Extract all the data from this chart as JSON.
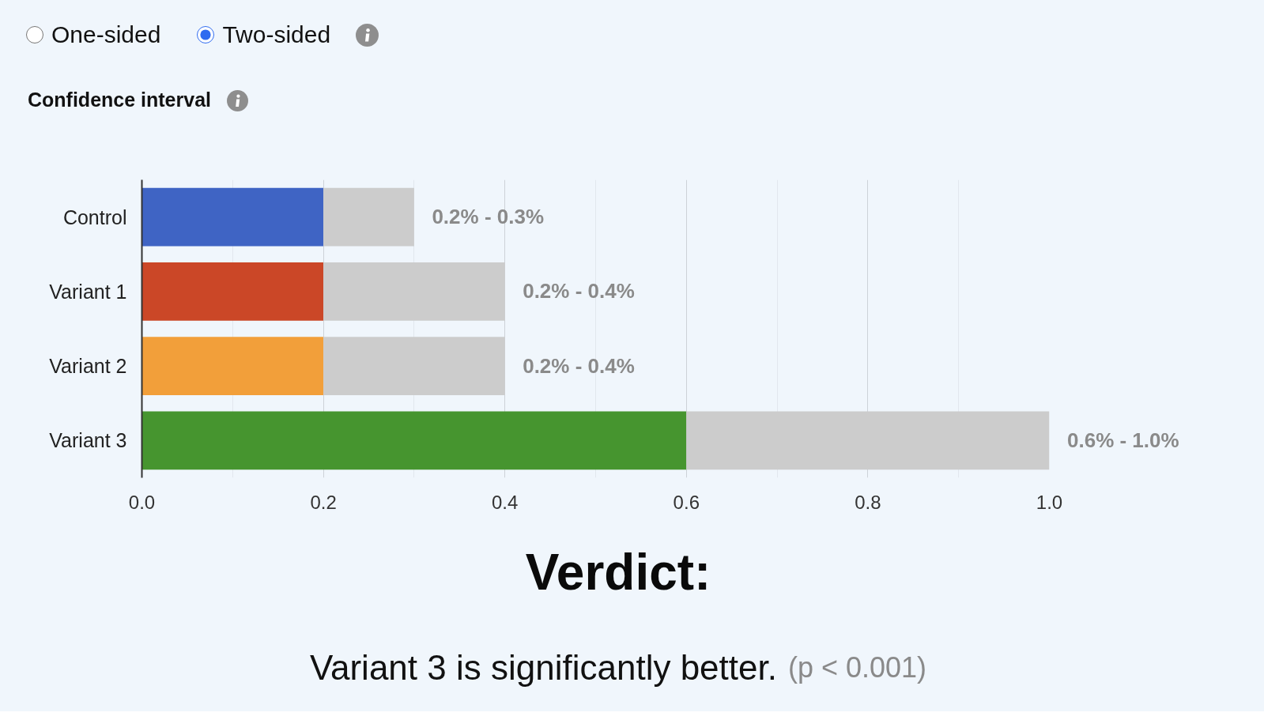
{
  "chart_data": {
    "type": "bar",
    "orientation": "horizontal",
    "stacked": true,
    "title": "Confidence interval",
    "categories": [
      "Control",
      "Variant 1",
      "Variant 2",
      "Variant 3"
    ],
    "series": [
      {
        "colors": [
          "#3f64c4",
          "#cb4727",
          "#f29f3a",
          "#46952f"
        ],
        "values": [
          0.2,
          0.2,
          0.2,
          0.6
        ]
      },
      {
        "color": "#cccccc",
        "values": [
          0.1,
          0.2,
          0.2,
          0.4
        ]
      }
    ],
    "xlim": [
      0,
      1
    ],
    "xticks": [
      {
        "value": 0,
        "label": "0.0"
      },
      0.2,
      0.4,
      0.6,
      0.8,
      {
        "value": 1,
        "label": "1.0"
      }
    ],
    "grid": "x",
    "annotations": [
      "One-sided",
      "Two-sided",
      "Verdict:",
      "Variant 3 is significantly better.",
      "(p < 0.001)",
      {
        "text": "0.2% - 0.3%",
        "x": 0.3,
        "y": "Control"
      },
      {
        "text": "0.2% - 0.4%",
        "x": 0.4,
        "y": "Variant 1"
      },
      {
        "text": "0.2% - 0.4%",
        "x": 0.4,
        "y": "Variant 2"
      },
      {
        "text": "0.6% - 1.0%",
        "x": 1.0,
        "y": "Variant 3"
      }
    ]
  }
}
